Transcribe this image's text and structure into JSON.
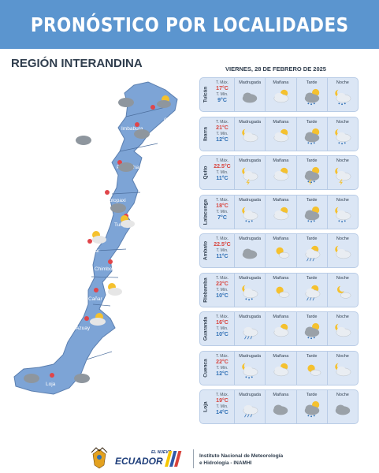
{
  "header": {
    "title": "PRONÓSTICO POR LOCALIDADES"
  },
  "region": {
    "title": "REGIÓN INTERANDINA"
  },
  "date": "VIERNES, 28 DE FEBRERO DE 2025",
  "labels": {
    "t_max": "T. Máx.",
    "t_min": "T. Mín.",
    "periods": [
      "Madrugada",
      "Mañana",
      "Tarde",
      "Noche"
    ]
  },
  "cities": [
    {
      "name": "Tulcán",
      "t_max": "17°C",
      "t_min": "9°C",
      "icons": [
        "cloudy",
        "partly-cloudy-sun",
        "cloud-sun-rain",
        "cloud-moon-rain"
      ]
    },
    {
      "name": "Ibarra",
      "t_max": "21°C",
      "t_min": "12°C",
      "icons": [
        "cloud-moon",
        "partly-cloudy-sun",
        "cloud-sun-rain",
        "cloud-moon-rain"
      ]
    },
    {
      "name": "Quito",
      "t_max": "22.5°C",
      "t_min": "11°C",
      "icons": [
        "cloud-moon-storm",
        "partly-cloudy-sun",
        "cloud-sun-storm",
        "cloud-moon-storm"
      ]
    },
    {
      "name": "Latacunga",
      "t_max": "18°C",
      "t_min": "7°C",
      "icons": [
        "cloud-moon-rain",
        "partly-cloudy-sun",
        "cloud-sun-rain",
        "cloud-moon-rain"
      ]
    },
    {
      "name": "Ambato",
      "t_max": "22.5°C",
      "t_min": "11°C",
      "icons": [
        "cloudy",
        "sun-cloud",
        "sun-cloud-drizzle",
        "cloud-moon"
      ]
    },
    {
      "name": "Riobamba",
      "t_max": "22°C",
      "t_min": "10°C",
      "icons": [
        "cloud-moon-rain",
        "sun-cloud",
        "sun-cloud-drizzle",
        "moon-cloud"
      ]
    },
    {
      "name": "Guaranda",
      "t_max": "16°C",
      "t_min": "10°C",
      "icons": [
        "cloud-rain",
        "partly-cloudy-sun",
        "cloud-sun-rain",
        "cloud-moon"
      ]
    },
    {
      "name": "Cuenca",
      "t_max": "22°C",
      "t_min": "12°C",
      "icons": [
        "cloud-moon-rain",
        "partly-cloudy-sun",
        "sun-cloud",
        "cloud-moon"
      ]
    },
    {
      "name": "Loja",
      "t_max": "19°C",
      "t_min": "14°C",
      "icons": [
        "cloud-rain",
        "cloudy",
        "cloud-sun-rain",
        "cloudy"
      ]
    }
  ],
  "map_labels": {
    "carchi": "Carchi",
    "imbabura": "Imbabura",
    "pichincha": "Pichincha",
    "cotopaxi": "Cotopaxi",
    "tungurahua": "Tungurahua",
    "bolivar": "Bolívar",
    "chimborazo": "Chimborazo",
    "canar": "Cañar",
    "azuay": "Azuay",
    "loja": "Loja"
  },
  "footer": {
    "logo_small": "EL NUEVO",
    "logo_main": "ECUADOR",
    "institution_line1": "Instituto Nacional de Meteorología",
    "institution_line2": "e Hidrología - INAMHI"
  },
  "colors": {
    "header": "#5b95cf",
    "map_fill": "#7da4d6",
    "row_bg": "#dbe6f5",
    "max_temp": "#d8433c",
    "min_temp": "#2f6fb4",
    "pin": "#e0454a"
  }
}
